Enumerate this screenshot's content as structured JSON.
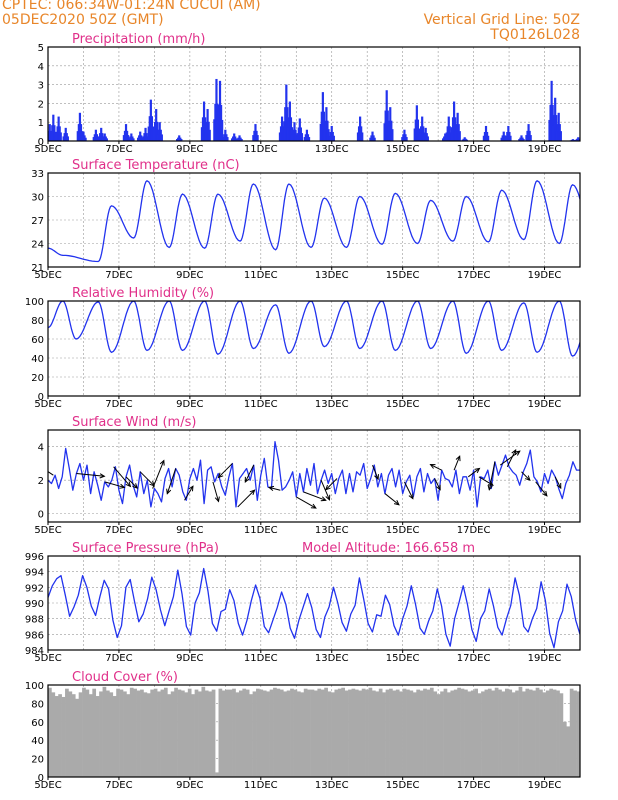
{
  "header": {
    "line1": "CPTEC:   066:34W-01:24N   CUCUI (AM)",
    "line2": "05DEC2020 50Z (GMT)",
    "grid_note": "Vertical Grid Line: 50Z",
    "model_code": "TQ0126L028"
  },
  "x_axis": {
    "tick_labels": [
      "5DEC",
      "7DEC",
      "9DEC",
      "11DEC",
      "13DEC",
      "15DEC",
      "17DEC",
      "19DEC"
    ],
    "tick_days": [
      0,
      2,
      4,
      6,
      8,
      10,
      12,
      14
    ],
    "range_days": [
      0,
      15
    ]
  },
  "colors": {
    "line": "#2233ee",
    "bar": "#2233ee",
    "cloud": "#aaaaaa",
    "title": "#e0308a",
    "header": "#e8862a",
    "wind_arrow": "#000000"
  },
  "chart_data": [
    {
      "id": "precip",
      "type": "bar",
      "title": "Precipitation (mm/h)",
      "ylim": [
        0,
        5
      ],
      "yticks": [
        0,
        1,
        2,
        3,
        4,
        5
      ],
      "peaks": [
        {
          "day": 0.05,
          "value": 0.9
        },
        {
          "day": 0.15,
          "value": 1.4
        },
        {
          "day": 0.3,
          "value": 1.3
        },
        {
          "day": 0.5,
          "value": 0.7
        },
        {
          "day": 0.9,
          "value": 1.5
        },
        {
          "day": 1.0,
          "value": 0.5
        },
        {
          "day": 1.35,
          "value": 0.6
        },
        {
          "day": 1.5,
          "value": 0.7
        },
        {
          "day": 1.6,
          "value": 0.4
        },
        {
          "day": 2.2,
          "value": 0.9
        },
        {
          "day": 2.35,
          "value": 0.4
        },
        {
          "day": 2.6,
          "value": 0.5
        },
        {
          "day": 2.75,
          "value": 0.7
        },
        {
          "day": 2.9,
          "value": 2.2
        },
        {
          "day": 3.05,
          "value": 1.7
        },
        {
          "day": 3.15,
          "value": 1.0
        },
        {
          "day": 3.7,
          "value": 0.3
        },
        {
          "day": 4.4,
          "value": 2.1
        },
        {
          "day": 4.5,
          "value": 1.7
        },
        {
          "day": 4.75,
          "value": 3.3
        },
        {
          "day": 4.85,
          "value": 3.2
        },
        {
          "day": 5.0,
          "value": 0.6
        },
        {
          "day": 5.25,
          "value": 0.4
        },
        {
          "day": 5.4,
          "value": 0.3
        },
        {
          "day": 5.85,
          "value": 0.9
        },
        {
          "day": 6.6,
          "value": 1.3
        },
        {
          "day": 6.72,
          "value": 3.0
        },
        {
          "day": 6.82,
          "value": 2.1
        },
        {
          "day": 6.95,
          "value": 1.0
        },
        {
          "day": 7.1,
          "value": 1.2
        },
        {
          "day": 7.3,
          "value": 0.6
        },
        {
          "day": 7.75,
          "value": 2.6
        },
        {
          "day": 7.85,
          "value": 1.8
        },
        {
          "day": 8.0,
          "value": 0.8
        },
        {
          "day": 8.8,
          "value": 1.3
        },
        {
          "day": 9.15,
          "value": 0.5
        },
        {
          "day": 9.55,
          "value": 2.7
        },
        {
          "day": 9.65,
          "value": 1.8
        },
        {
          "day": 10.05,
          "value": 0.6
        },
        {
          "day": 10.4,
          "value": 1.9
        },
        {
          "day": 10.55,
          "value": 1.3
        },
        {
          "day": 10.65,
          "value": 0.7
        },
        {
          "day": 11.2,
          "value": 0.4
        },
        {
          "day": 11.3,
          "value": 1.3
        },
        {
          "day": 11.45,
          "value": 2.1
        },
        {
          "day": 11.55,
          "value": 1.5
        },
        {
          "day": 11.75,
          "value": 0.2
        },
        {
          "day": 12.35,
          "value": 0.8
        },
        {
          "day": 12.85,
          "value": 0.5
        },
        {
          "day": 12.98,
          "value": 0.8
        },
        {
          "day": 13.35,
          "value": 0.3
        },
        {
          "day": 13.55,
          "value": 0.9
        },
        {
          "day": 14.2,
          "value": 3.2
        },
        {
          "day": 14.3,
          "value": 2.3
        },
        {
          "day": 14.4,
          "value": 1.5
        },
        {
          "day": 14.8,
          "value": 0.1
        },
        {
          "day": 14.95,
          "value": 0.2
        }
      ]
    },
    {
      "id": "temp",
      "type": "line",
      "title": "Surface Temperature (nC)",
      "ylim": [
        21,
        33
      ],
      "yticks": [
        21,
        24,
        27,
        30,
        33
      ],
      "min_hour": 10,
      "max_hour": 19,
      "daily_min": [
        22.5,
        21.7,
        24.7,
        23.5,
        23.4,
        24.3,
        23.2,
        23.5,
        23.5,
        23.9,
        24.0,
        24.3,
        24.2,
        24.5,
        24.0,
        24.2
      ],
      "daily_max": [
        null,
        28.8,
        32.0,
        30.3,
        30.3,
        31.6,
        31.6,
        29.8,
        30.0,
        30.4,
        29.5,
        30.0,
        30.8,
        32.0,
        31.5,
        32.8
      ]
    },
    {
      "id": "rh",
      "type": "line",
      "title": "Relative Humidity (%)",
      "ylim": [
        0,
        100
      ],
      "yticks": [
        0,
        20,
        40,
        60,
        80,
        100
      ],
      "min_hour": 19,
      "max_hour": 10,
      "daily_max": [
        100,
        99,
        100,
        100,
        100,
        100,
        96,
        100,
        100,
        100,
        100,
        100,
        100,
        98,
        100,
        100
      ],
      "daily_min": [
        60,
        46,
        48,
        48,
        44,
        50,
        45,
        52,
        50,
        48,
        50,
        45,
        48,
        46,
        42,
        48
      ]
    },
    {
      "id": "wind",
      "type": "line",
      "title": "Surface Wind (m/s)",
      "ylim": [
        -0.5,
        5
      ],
      "yticks": [
        0,
        2,
        4
      ],
      "series": [
        2.0,
        1.8,
        2.3,
        1.5,
        2.2,
        3.9,
        2.7,
        1.4,
        2.4,
        3.0,
        2.0,
        2.9,
        1.2,
        2.5,
        1.7,
        0.8,
        1.9,
        1.6,
        2.0,
        2.8,
        1.4,
        0.6,
        2.2,
        2.9,
        1.7,
        1.0,
        2.5,
        1.2,
        2.0,
        0.4,
        1.5,
        1.2,
        0.7,
        2.1,
        2.7,
        1.6,
        2.7,
        2.3,
        1.3,
        0.8,
        2.1,
        2.7,
        2.0,
        3.2,
        0.6,
        2.6,
        2.8,
        1.9,
        2.4,
        1.6,
        1.1,
        2.2,
        3.0,
        0.4,
        2.1,
        2.4,
        2.7,
        2.0,
        2.9,
        0.8,
        2.3,
        3.3,
        1.6,
        1.5,
        4.3,
        3.2,
        1.4,
        1.6,
        2.0,
        2.5,
        1.0,
        2.4,
        1.3,
        2.7,
        1.7,
        3.0,
        1.2,
        2.0,
        2.6,
        1.8,
        2.4,
        1.2,
        2.1,
        2.6,
        1.2,
        2.4,
        1.3,
        2.5,
        2.3,
        3.0,
        1.5,
        2.1,
        2.9,
        1.6,
        2.4,
        1.2,
        2.3,
        2.7,
        1.6,
        2.6,
        1.2,
        1.9,
        2.3,
        1.0,
        2.2,
        2.7,
        1.3,
        2.4,
        1.8,
        2.1,
        0.8,
        2.6,
        2.1,
        2.0,
        1.6,
        2.6,
        1.2,
        2.2,
        2.2,
        1.4,
        2.6,
        0.4,
        2.2,
        2.1,
        2.6,
        1.5,
        3.1,
        2.3,
        2.9,
        3.5,
        2.8,
        2.5,
        2.3,
        1.7,
        2.5,
        3.0,
        3.8,
        2.2,
        1.9,
        1.3,
        2.4,
        1.8,
        2.6,
        2.2,
        1.5,
        0.9,
        1.8,
        2.3,
        3.1,
        2.6,
        2.6
      ],
      "arrows": [
        {
          "day": 0.15,
          "u": -0.6,
          "v": 0.4
        },
        {
          "day": 0.8,
          "u": 1.0,
          "v": -0.1
        },
        {
          "day": 1.6,
          "u": 0.7,
          "v": -0.2
        },
        {
          "day": 1.85,
          "u": 0.6,
          "v": -0.7
        },
        {
          "day": 2.2,
          "u": 0.4,
          "v": -0.4
        },
        {
          "day": 2.6,
          "u": 0.5,
          "v": -0.5
        },
        {
          "day": 2.95,
          "u": 0.4,
          "v": 1.0
        },
        {
          "day": 3.6,
          "u": -0.3,
          "v": -0.9
        },
        {
          "day": 3.85,
          "u": 0.3,
          "v": 0.5
        },
        {
          "day": 4.65,
          "u": 0.2,
          "v": -0.7
        },
        {
          "day": 5.2,
          "u": -0.5,
          "v": -0.5
        },
        {
          "day": 5.35,
          "u": 0.6,
          "v": 0.6
        },
        {
          "day": 5.8,
          "u": -0.3,
          "v": -0.6
        },
        {
          "day": 6.55,
          "u": -0.4,
          "v": 0.1
        },
        {
          "day": 7.0,
          "u": 0.7,
          "v": -0.4
        },
        {
          "day": 7.2,
          "u": 0.8,
          "v": -0.3
        },
        {
          "day": 7.7,
          "u": 0.3,
          "v": -0.7
        },
        {
          "day": 8.15,
          "u": -0.4,
          "v": -0.4
        },
        {
          "day": 9.15,
          "u": 0.2,
          "v": -0.5
        },
        {
          "day": 9.5,
          "u": 0.5,
          "v": -0.4
        },
        {
          "day": 10.05,
          "u": 0.3,
          "v": -0.6
        },
        {
          "day": 10.9,
          "u": 0.2,
          "v": -0.4
        },
        {
          "day": 11.1,
          "u": -0.4,
          "v": 0.2
        },
        {
          "day": 11.45,
          "u": 0.2,
          "v": 0.5
        },
        {
          "day": 11.85,
          "u": 0.4,
          "v": 0.3
        },
        {
          "day": 12.15,
          "u": 0.5,
          "v": -0.3
        },
        {
          "day": 12.6,
          "u": -0.2,
          "v": -1.0
        },
        {
          "day": 12.75,
          "u": 0.7,
          "v": 0.5
        },
        {
          "day": 12.95,
          "u": 0.3,
          "v": 0.6
        },
        {
          "day": 13.35,
          "u": 0.3,
          "v": -0.3
        },
        {
          "day": 13.75,
          "u": 0.4,
          "v": -0.5
        },
        {
          "day": 14.3,
          "u": 0.2,
          "v": -0.4
        }
      ]
    },
    {
      "id": "pressure",
      "type": "line",
      "title": "Surface Pressure (hPa)",
      "annotation": "Model Altitude: 166.658 m",
      "ylim": [
        984,
        996
      ],
      "yticks": [
        984,
        986,
        988,
        990,
        992,
        994,
        996
      ],
      "series": [
        990.7,
        992.2,
        993.1,
        993.5,
        991.0,
        988.3,
        989.5,
        991.0,
        993.5,
        992.0,
        989.6,
        988.4,
        990.8,
        992.9,
        991.8,
        987.8,
        985.6,
        987.1,
        992.0,
        993.0,
        990.2,
        987.6,
        988.6,
        990.5,
        993.3,
        991.7,
        989.1,
        987.1,
        989.0,
        990.8,
        994.2,
        991.1,
        987.0,
        985.9,
        990.0,
        991.3,
        994.4,
        991.5,
        987.4,
        986.4,
        988.9,
        989.2,
        991.7,
        990.3,
        987.4,
        985.9,
        987.8,
        990.3,
        992.3,
        990.6,
        987.0,
        986.2,
        987.8,
        989.4,
        991.4,
        989.8,
        986.8,
        985.5,
        987.8,
        989.5,
        991.2,
        989.4,
        986.6,
        985.6,
        988.2,
        989.5,
        992.0,
        990.0,
        987.5,
        986.4,
        988.6,
        989.7,
        993.2,
        990.5,
        987.4,
        986.3,
        988.5,
        988.3,
        991.0,
        989.8,
        987.1,
        985.9,
        988.0,
        989.6,
        992.2,
        989.8,
        986.8,
        986.0,
        987.7,
        989.0,
        991.8,
        989.6,
        986.0,
        984.5,
        988.0,
        990.0,
        992.2,
        989.8,
        986.6,
        985.1,
        988.0,
        989.0,
        991.8,
        989.6,
        986.9,
        985.9,
        988.0,
        989.7,
        993.2,
        991.0,
        987.0,
        986.3,
        988.0,
        989.3,
        992.7,
        990.3,
        986.1,
        984.3,
        987.6,
        989.0,
        992.4,
        990.8,
        987.8,
        986.0
      ]
    },
    {
      "id": "cloud",
      "type": "bar",
      "title": "Cloud Cover (%)",
      "ylim": [
        0,
        100
      ],
      "yticks": [
        0,
        20,
        40,
        60,
        80,
        100
      ],
      "series": [
        97,
        92,
        88,
        90,
        87,
        96,
        93,
        90,
        85,
        92,
        97,
        95,
        90,
        96,
        88,
        93,
        98,
        94,
        92,
        88,
        96,
        95,
        93,
        90,
        97,
        96,
        94,
        95,
        92,
        91,
        95,
        96,
        93,
        95,
        97,
        90,
        93,
        97,
        95,
        94,
        92,
        96,
        90,
        95,
        93,
        98,
        94,
        93,
        95,
        5,
        96,
        94,
        95,
        95,
        96,
        92,
        94,
        96,
        95,
        90,
        93,
        96,
        95,
        94,
        93,
        95,
        97,
        96,
        95,
        93,
        94,
        96,
        95,
        93,
        92,
        96,
        95,
        95,
        94,
        96,
        95,
        97,
        93,
        92,
        95,
        96,
        97,
        94,
        95,
        96,
        95,
        94,
        96,
        95,
        97,
        94,
        93,
        96,
        92,
        95,
        96,
        94,
        95,
        93,
        96,
        95,
        94,
        92,
        95,
        94,
        96,
        95,
        97,
        93,
        90,
        93,
        96,
        92,
        94,
        95,
        97,
        96,
        95,
        93,
        94,
        96,
        91,
        93,
        95,
        96,
        94,
        97,
        95,
        93,
        96,
        95,
        92,
        94,
        98,
        93,
        96,
        95,
        94,
        97,
        95,
        92,
        94,
        96,
        95,
        94,
        91,
        60,
        55,
        96,
        94,
        93
      ]
    }
  ]
}
